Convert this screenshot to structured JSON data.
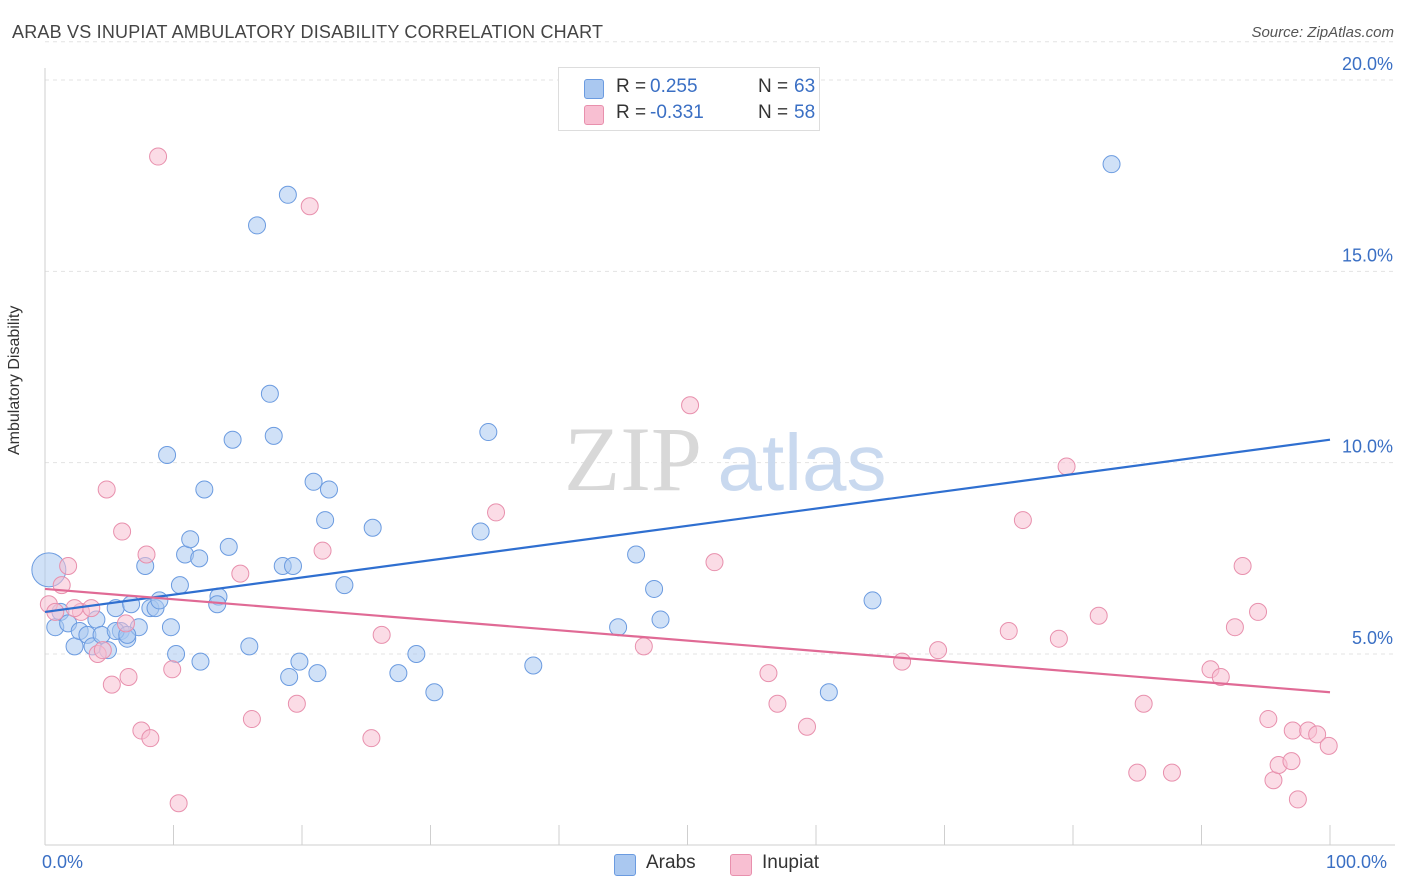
{
  "title": "ARAB VS INUPIAT AMBULATORY DISABILITY CORRELATION CHART",
  "source": "Source: ZipAtlas.com",
  "watermark": {
    "zip": "ZIP",
    "atlas": "atlas"
  },
  "stats": [
    {
      "r_label": "R =",
      "r_value": "0.255",
      "n_label": "N =",
      "n_value": "63",
      "color": "#aac8f0",
      "border": "#6b9be0"
    },
    {
      "r_label": "R =",
      "r_value": "-0.331",
      "n_label": "N =",
      "n_value": "58",
      "color": "#f8bfd2",
      "border": "#e890ad"
    }
  ],
  "legend": [
    {
      "label": "Arabs",
      "color": "#aac8f0",
      "border": "#6b9be0"
    },
    {
      "label": "Inupiat",
      "color": "#f8bfd2",
      "border": "#e890ad"
    }
  ],
  "chart_data": {
    "type": "scatter",
    "xlabel": "",
    "ylabel": "Ambulatory Disability",
    "xlim": [
      0,
      100
    ],
    "ylim": [
      0,
      21
    ],
    "x_tick_labels": [
      "0.0%",
      "100.0%"
    ],
    "y_ticks": [
      5,
      10,
      15,
      20
    ],
    "y_tick_labels": [
      "5.0%",
      "10.0%",
      "15.0%",
      "20.0%"
    ],
    "grid": "horizontal dashed",
    "series": [
      {
        "name": "Arabs",
        "color": "#6b9be0",
        "fill": "#aac8f0",
        "line_color": "#2f6fd0",
        "trend": [
          [
            0,
            6.1
          ],
          [
            100,
            10.6
          ]
        ],
        "points": [
          [
            0.3,
            7.2
          ],
          [
            0.8,
            5.7
          ],
          [
            1.2,
            6.1
          ],
          [
            1.8,
            5.8
          ],
          [
            2.3,
            5.2
          ],
          [
            2.7,
            5.6
          ],
          [
            3.3,
            5.5
          ],
          [
            3.7,
            5.2
          ],
          [
            4.0,
            5.9
          ],
          [
            4.4,
            5.5
          ],
          [
            4.9,
            5.1
          ],
          [
            5.5,
            6.2
          ],
          [
            5.9,
            5.6
          ],
          [
            6.4,
            5.4
          ],
          [
            6.7,
            6.3
          ],
          [
            7.3,
            5.7
          ],
          [
            7.8,
            7.3
          ],
          [
            8.2,
            6.2
          ],
          [
            8.6,
            6.2
          ],
          [
            8.9,
            6.4
          ],
          [
            9.5,
            10.2
          ],
          [
            9.8,
            5.7
          ],
          [
            10.2,
            5.0
          ],
          [
            10.5,
            6.8
          ],
          [
            10.9,
            7.6
          ],
          [
            11.3,
            8.0
          ],
          [
            12.0,
            7.5
          ],
          [
            12.4,
            9.3
          ],
          [
            12.1,
            4.8
          ],
          [
            13.5,
            6.5
          ],
          [
            13.4,
            6.3
          ],
          [
            14.3,
            7.8
          ],
          [
            14.6,
            10.6
          ],
          [
            15.9,
            5.2
          ],
          [
            16.5,
            16.2
          ],
          [
            17.5,
            11.8
          ],
          [
            17.8,
            10.7
          ],
          [
            18.5,
            7.3
          ],
          [
            18.9,
            17.0
          ],
          [
            19.0,
            4.4
          ],
          [
            19.3,
            7.3
          ],
          [
            19.8,
            4.8
          ],
          [
            20.9,
            9.5
          ],
          [
            21.2,
            4.5
          ],
          [
            21.8,
            8.5
          ],
          [
            22.1,
            9.3
          ],
          [
            23.3,
            6.8
          ],
          [
            25.5,
            8.3
          ],
          [
            27.5,
            4.5
          ],
          [
            28.9,
            5.0
          ],
          [
            30.3,
            4.0
          ],
          [
            33.9,
            8.2
          ],
          [
            34.5,
            10.8
          ],
          [
            38.0,
            4.7
          ],
          [
            44.6,
            5.7
          ],
          [
            46.0,
            7.6
          ],
          [
            47.4,
            6.7
          ],
          [
            47.9,
            5.9
          ],
          [
            61.0,
            4.0
          ],
          [
            64.4,
            6.4
          ],
          [
            83.0,
            17.8
          ],
          [
            5.5,
            5.6
          ],
          [
            6.4,
            5.5
          ]
        ]
      },
      {
        "name": "Inupiat",
        "color": "#e890ad",
        "fill": "#f8bfd2",
        "line_color": "#e06a95",
        "trend": [
          [
            0,
            6.7
          ],
          [
            100,
            4.0
          ]
        ],
        "points": [
          [
            0.3,
            6.3
          ],
          [
            0.8,
            6.1
          ],
          [
            1.3,
            6.8
          ],
          [
            1.8,
            7.3
          ],
          [
            2.8,
            6.1
          ],
          [
            3.6,
            6.2
          ],
          [
            4.1,
            5.0
          ],
          [
            4.5,
            5.1
          ],
          [
            4.8,
            9.3
          ],
          [
            5.2,
            4.2
          ],
          [
            6.0,
            8.2
          ],
          [
            6.3,
            5.8
          ],
          [
            6.5,
            4.4
          ],
          [
            7.5,
            3.0
          ],
          [
            7.9,
            7.6
          ],
          [
            8.2,
            2.8
          ],
          [
            8.8,
            18.0
          ],
          [
            9.9,
            4.6
          ],
          [
            10.4,
            1.1
          ],
          [
            15.2,
            7.1
          ],
          [
            16.1,
            3.3
          ],
          [
            19.6,
            3.7
          ],
          [
            20.6,
            16.7
          ],
          [
            21.6,
            7.7
          ],
          [
            25.4,
            2.8
          ],
          [
            26.2,
            5.5
          ],
          [
            35.1,
            8.7
          ],
          [
            46.6,
            5.2
          ],
          [
            50.2,
            11.5
          ],
          [
            52.1,
            7.4
          ],
          [
            56.3,
            4.5
          ],
          [
            57.0,
            3.7
          ],
          [
            59.3,
            3.1
          ],
          [
            66.7,
            4.8
          ],
          [
            69.5,
            5.1
          ],
          [
            75.0,
            5.6
          ],
          [
            76.1,
            8.5
          ],
          [
            78.9,
            5.4
          ],
          [
            79.5,
            9.9
          ],
          [
            82.0,
            6.0
          ],
          [
            85.0,
            1.9
          ],
          [
            85.5,
            3.7
          ],
          [
            87.7,
            1.9
          ],
          [
            90.7,
            4.6
          ],
          [
            91.5,
            4.4
          ],
          [
            92.6,
            5.7
          ],
          [
            93.2,
            7.3
          ],
          [
            94.4,
            6.1
          ],
          [
            95.2,
            3.3
          ],
          [
            95.6,
            1.7
          ],
          [
            96.0,
            2.1
          ],
          [
            97.0,
            2.2
          ],
          [
            97.1,
            3.0
          ],
          [
            97.5,
            1.2
          ],
          [
            98.3,
            3.0
          ],
          [
            99.0,
            2.9
          ],
          [
            99.9,
            2.6
          ],
          [
            2.3,
            6.2
          ]
        ]
      }
    ]
  }
}
